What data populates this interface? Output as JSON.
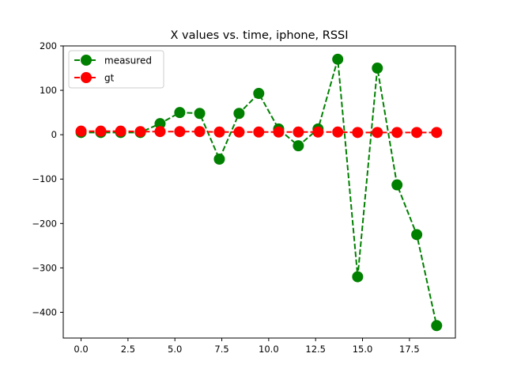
{
  "chart_data": {
    "type": "line",
    "title": "X values vs. time, iphone, RSSI",
    "xlabel": "",
    "ylabel": "",
    "xlim": [
      -0.95,
      19.95
    ],
    "ylim": [
      -458,
      200
    ],
    "x_ticks": [
      0.0,
      2.5,
      5.0,
      7.5,
      10.0,
      12.5,
      15.0,
      17.5
    ],
    "x_tick_labels": [
      "0.0",
      "2.5",
      "5.0",
      "7.5",
      "10.0",
      "12.5",
      "15.0",
      "17.5"
    ],
    "y_ticks": [
      200,
      100,
      0,
      -100,
      -200,
      -300,
      -400
    ],
    "y_tick_labels": [
      "200",
      "100",
      "0",
      "−100",
      "−200",
      "−300",
      "−400"
    ],
    "grid": false,
    "legend_position": "upper-left",
    "x": [
      0.0,
      1.05,
      2.11,
      3.16,
      4.21,
      5.26,
      6.32,
      7.37,
      8.42,
      9.47,
      10.53,
      11.58,
      12.63,
      13.68,
      14.74,
      15.79,
      16.84,
      17.89,
      18.95
    ],
    "series": [
      {
        "name": "measured",
        "color": "#008000",
        "linestyle": "dashed",
        "marker": "circle",
        "values": [
          5,
          5,
          5,
          5,
          25,
          50,
          48,
          -55,
          48,
          93,
          13,
          -25,
          13,
          170,
          -320,
          150,
          -113,
          -225,
          -430
        ]
      },
      {
        "name": "gt",
        "color": "#ff0000",
        "linestyle": "dashed",
        "marker": "circle",
        "values": [
          8,
          8,
          8,
          7,
          7,
          7,
          7,
          6,
          6,
          6,
          6,
          6,
          6,
          6,
          5,
          5,
          5,
          5,
          5
        ]
      }
    ]
  }
}
